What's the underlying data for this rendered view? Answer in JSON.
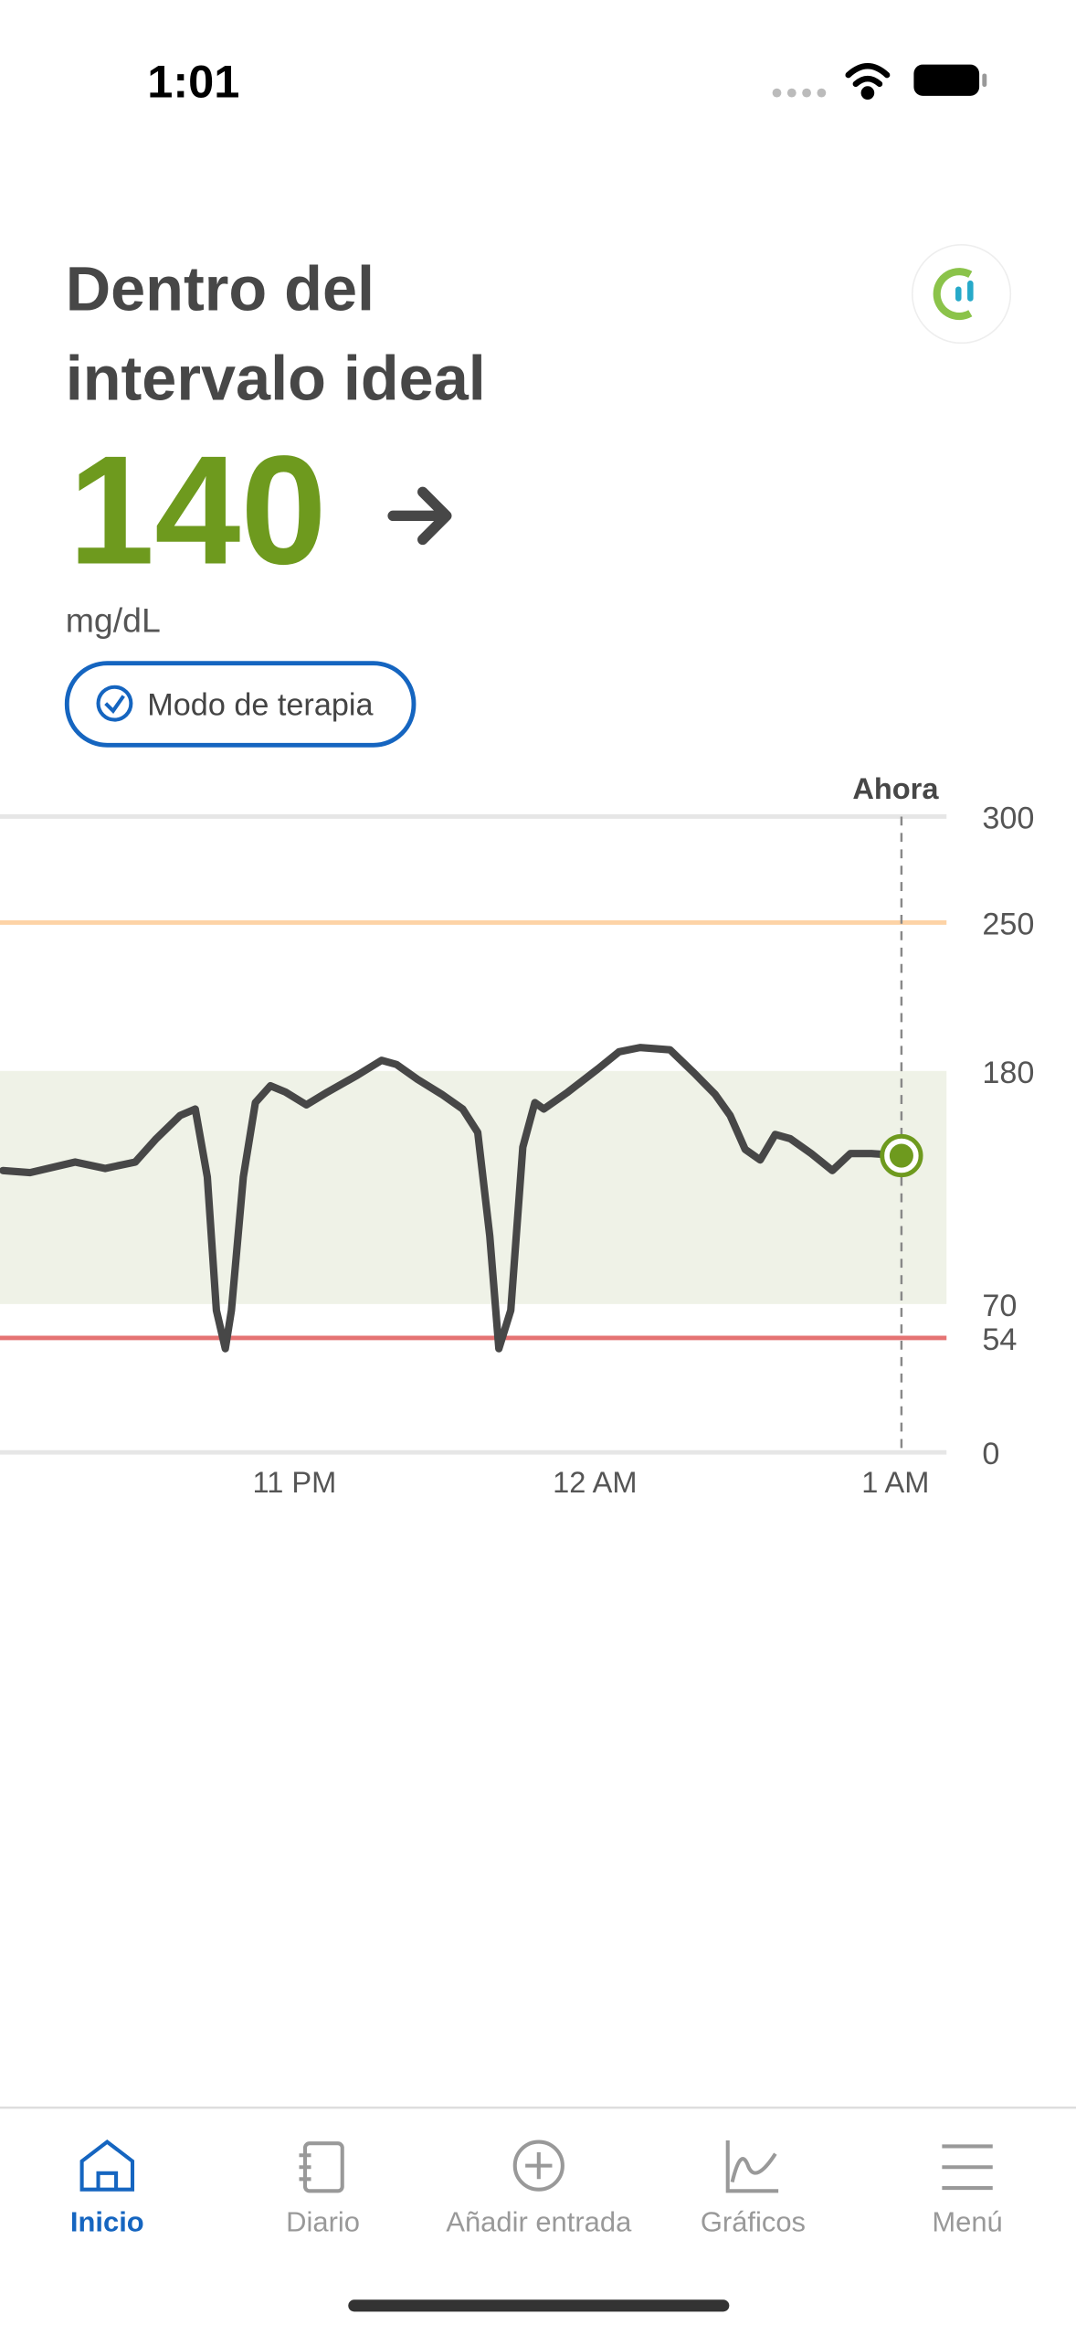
{
  "status_bar": {
    "time": "1:01"
  },
  "header": {
    "status": [
      "Dentro del",
      "intervalo ideal"
    ],
    "value": 140,
    "unit": "mg/dL",
    "badge": "Modo de terapia"
  },
  "chart_data": {
    "type": "line",
    "x": [
      22.03,
      22.12,
      22.27,
      22.37,
      22.47,
      22.54,
      22.62,
      22.67,
      22.71,
      22.74,
      22.77,
      22.79,
      22.83,
      22.87,
      22.92,
      22.97,
      23.04,
      23.11,
      23.21,
      23.29,
      23.34,
      23.41,
      23.49,
      23.56,
      23.61,
      23.65,
      23.68,
      23.72,
      23.76,
      23.8,
      23.83,
      23.91,
      24.01,
      24.08,
      24.15,
      24.25,
      24.33,
      24.4,
      24.45,
      24.5,
      24.55,
      24.6,
      24.65,
      24.72,
      24.79,
      24.85,
      24.92,
      25.02
    ],
    "series": [
      {
        "color": "#474747",
        "values": [
          133,
          132,
          137,
          134,
          137,
          148,
          159,
          162,
          130,
          67,
          49,
          67,
          130,
          165,
          173,
          170,
          164,
          170,
          178,
          185,
          183,
          176,
          169,
          162,
          151,
          102,
          49,
          67,
          144,
          165,
          162,
          170,
          181,
          189,
          191,
          190,
          179,
          169,
          159,
          143,
          138,
          150,
          148,
          141,
          133,
          141,
          141,
          140
        ]
      }
    ],
    "xlim": [
      22.02,
      25.17
    ],
    "xticks": [
      {
        "value": 23,
        "label": "11 PM"
      },
      {
        "value": 24,
        "label": "12 AM"
      },
      {
        "value": 25,
        "label": "1 AM"
      }
    ],
    "ylim": [
      0,
      300
    ],
    "yticks": [
      0,
      54,
      70,
      180,
      250,
      300
    ],
    "target_range": [
      70,
      180
    ],
    "target_color": "#eff2e7",
    "high_line": 250,
    "high_color": "#fdd3a6",
    "low_line": 54,
    "low_color": "#e57373",
    "now": {
      "label": "Ahora",
      "x": 25.02
    },
    "dot_color": "#6e9a1e"
  },
  "tabs": [
    "Inicio",
    "Diario",
    "Añadir entrada",
    "Gráficos",
    "Menú"
  ]
}
